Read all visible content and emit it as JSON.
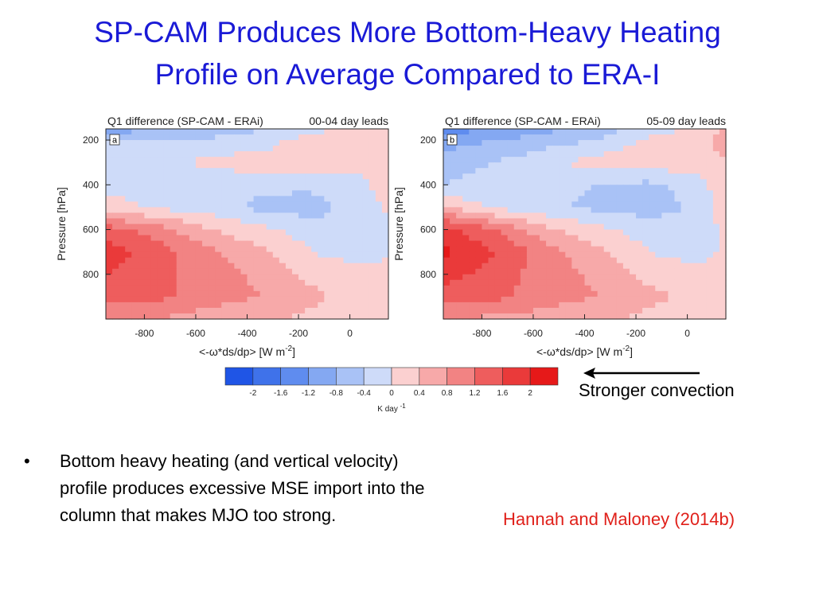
{
  "slide": {
    "title_line1": "SP-CAM Produces More Bottom-Heavy Heating",
    "title_line2": "Profile on Average Compared to ERA-I",
    "title_color": "#1a1ad6",
    "bullet_text": "Bottom heavy heating (and vertical velocity) profile produces excessive MSE import into the column that makes MJO too strong.",
    "bullet_symbol": "•",
    "citation": "Hannah and Maloney (2014b)",
    "citation_color": "#e0201a",
    "annotation": "Stronger convection"
  },
  "colorbar": {
    "levels": [
      -2,
      -1.6,
      -1.2,
      -0.8,
      -0.4,
      0,
      0.4,
      0.8,
      1.2,
      1.6,
      2
    ],
    "level_labels": [
      "-2",
      "-1.6",
      "-1.2",
      "-0.8",
      "-0.4",
      "0",
      "0.4",
      "0.8",
      "1.2",
      "1.6",
      "2"
    ],
    "colors": [
      "#1f55e6",
      "#3f72ea",
      "#5f8cef",
      "#84a8f2",
      "#a9c2f6",
      "#cedbf9",
      "#fbd0d0",
      "#f7a9a9",
      "#f28383",
      "#ee5d5d",
      "#ea3a3a",
      "#e61919"
    ],
    "unit_label": "K day",
    "unit_exp": "-1"
  },
  "chart_data": [
    {
      "type": "heatmap",
      "panel_label": "a",
      "title_left": "Q1 difference (SP-CAM - ERAi)",
      "title_right": "00-04 day leads",
      "xlabel_main": "<-ω*ds/dp>  [W m",
      "xlabel_exp": "-2",
      "xlabel_close": "]",
      "ylabel": "Pressure  [hPa]",
      "x_ticks": [
        -800,
        -600,
        -400,
        -200,
        0
      ],
      "x_tick_labels": [
        "-800",
        "-600",
        "-400",
        "-200",
        "0"
      ],
      "y_ticks": [
        200,
        400,
        600,
        800
      ],
      "y_tick_labels": [
        "200",
        "400",
        "600",
        "800"
      ],
      "xlim": [
        -950,
        150
      ],
      "ylim": [
        1000,
        150
      ],
      "x": [
        -950,
        -750,
        -550,
        -350,
        -150,
        50,
        150
      ],
      "y": [
        150,
        200,
        300,
        400,
        500,
        600,
        700,
        800,
        900,
        1000
      ],
      "z": [
        [
          -1.0,
          -0.9,
          -0.8,
          -0.4,
          -0.2,
          0.2,
          0.4
        ],
        [
          -0.4,
          -0.3,
          -0.3,
          -0.2,
          0.2,
          0.3,
          0.4
        ],
        [
          -0.3,
          -0.2,
          0.1,
          0.2,
          0.2,
          0.1,
          0.4
        ],
        [
          -0.2,
          -0.1,
          -0.2,
          -0.3,
          -0.3,
          -0.1,
          0.2
        ],
        [
          0.2,
          -0.1,
          -0.2,
          -0.5,
          -0.6,
          -0.2,
          0.1
        ],
        [
          1.4,
          1.0,
          0.4,
          0.1,
          -0.2,
          -0.2,
          -0.1
        ],
        [
          1.8,
          1.4,
          0.9,
          0.5,
          0.0,
          -0.2,
          -0.1
        ],
        [
          1.6,
          1.3,
          1.0,
          0.7,
          0.3,
          0.1,
          0.2
        ],
        [
          1.3,
          1.3,
          1.0,
          0.8,
          0.5,
          0.2,
          0.4
        ],
        [
          0.8,
          0.8,
          0.6,
          0.5,
          0.3,
          0.2,
          0.2
        ]
      ]
    },
    {
      "type": "heatmap",
      "panel_label": "b",
      "title_left": "Q1 difference (SP-CAM - ERAi)",
      "title_right": "05-09 day leads",
      "xlabel_main": "<-ω*ds/dp>  [W m",
      "xlabel_exp": "-2",
      "xlabel_close": "]",
      "ylabel": "Pressure  [hPa]",
      "x_ticks": [
        -800,
        -600,
        -400,
        -200,
        0
      ],
      "x_tick_labels": [
        "-800",
        "-600",
        "-400",
        "-200",
        "0"
      ],
      "y_ticks": [
        200,
        400,
        600,
        800
      ],
      "y_tick_labels": [
        "200",
        "400",
        "600",
        "800"
      ],
      "xlim": [
        -950,
        150
      ],
      "ylim": [
        1000,
        150
      ],
      "x": [
        -950,
        -750,
        -550,
        -350,
        -150,
        50,
        150
      ],
      "y": [
        150,
        200,
        300,
        400,
        500,
        600,
        700,
        800,
        900,
        1000
      ],
      "z": [
        [
          -1.4,
          -1.2,
          -0.9,
          -0.6,
          -0.3,
          0.2,
          0.5
        ],
        [
          -1.0,
          -0.8,
          -0.6,
          -0.4,
          0.1,
          0.3,
          0.5
        ],
        [
          -0.6,
          -0.4,
          -0.1,
          0.2,
          0.2,
          0.3,
          0.4
        ],
        [
          -0.4,
          -0.2,
          -0.3,
          -0.4,
          -0.5,
          -0.2,
          0.4
        ],
        [
          0.4,
          -0.1,
          -0.3,
          -0.5,
          -0.6,
          -0.3,
          0.3
        ],
        [
          1.8,
          1.2,
          0.5,
          0.1,
          -0.2,
          -0.2,
          0.1
        ],
        [
          2.1,
          1.6,
          1.0,
          0.5,
          0.0,
          -0.2,
          0.1
        ],
        [
          1.8,
          1.4,
          1.0,
          0.7,
          0.3,
          0.1,
          0.3
        ],
        [
          1.4,
          1.3,
          1.0,
          0.8,
          0.5,
          0.3,
          0.4
        ],
        [
          0.8,
          0.7,
          0.6,
          0.5,
          0.3,
          0.2,
          0.3
        ]
      ]
    }
  ]
}
